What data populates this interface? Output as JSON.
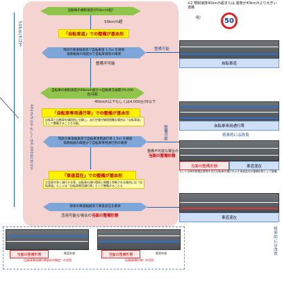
{
  "flow": {
    "q1": "自動車の規制速度が50km/h超?",
    "q1_yes": "50km/h超",
    "q1_result": "「自転車道」での整備が基本形",
    "q1_sub": [
      "現状の車道幅員等で自転車道 1.5m を確保",
      "道路幅員の再配分で自転車道等の確保"
    ],
    "q1_no": "整備不可能",
    "q1_possible": "整備可能",
    "q2": "自転車の規制速度が40km/h超かつ自動車交通量が4,000台/日超",
    "q2_no": "40km/h以下もしくは4,000台/日以下",
    "q2_result": "「自転車専用通行帯」での整備が基本形",
    "q2_note": "自転車と自動車を構造的に分離し、走行空間が確保困難な場合は「自転車道」として整備することも可能。",
    "q2_sub": [
      "現状の車道幅員等で自転車専用通行帯 1.5m を確保",
      "道路幅員の再配分で自転車専用通行帯の確保"
    ],
    "q2_possible": "整備可能",
    "q2_impossible_label": "整備不可能な場合の",
    "q2_impossible_result": "当面の整備形態",
    "q3_result": "「車道混在」での整備が基本形",
    "q3_note": "大型車が多く通行する等、自転車の通行環境上問題と判断される場合には「自転車道」もしくは「自転車専用通行帯」として整備することも",
    "q4": "現状の車道幅員等で車道混在を確保",
    "q4_label": "活用可能な場合の",
    "q4_result": "当面の整備形態",
    "side_left_top": "50km/h以下",
    "side_left_mid": "40km/h以下もしくは4,000台/日以下"
  },
  "legend_top": {
    "title": "※2 規制速度40km/h超または 速度が40km/hより大きい道路",
    "example": "例）",
    "sign_value": "50"
  },
  "right_cards": [
    {
      "label": "自転車道"
    },
    {
      "label": "自転車専用通行帯"
    },
    {
      "label_red": "当面の整備形態",
      "label_blue": "車道混在"
    },
    {
      "label": "車道混在"
    }
  ],
  "right_notes": {
    "future": "将来的には改良",
    "note3": "もしくは車両制限区間等を含む自転車の通行を示す車道混在の整備形態として整備",
    "vertical": "将来的には改良"
  },
  "bottom_cards": [
    {
      "red": "当面の整備形態",
      "sub": "（自転車専用通行帯部分の指定）の活用",
      "side": "既設歩道"
    },
    {
      "red": "当面の整備形態",
      "sub": "（自転車通行帯）の活用",
      "side": "既設歩道"
    }
  ]
}
